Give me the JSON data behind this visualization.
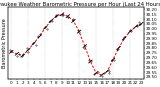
{
  "title": "Milwaukee Weather Barometric Pressure per Hour (Last 24 Hours)",
  "left_label": "Barometric Pressure",
  "hours": [
    0,
    1,
    2,
    3,
    4,
    5,
    6,
    7,
    8,
    9,
    10,
    11,
    12,
    13,
    14,
    15,
    16,
    17,
    18,
    19,
    20,
    21,
    22,
    23
  ],
  "pressure": [
    29.76,
    29.74,
    29.72,
    29.78,
    29.85,
    29.92,
    30.01,
    30.08,
    30.13,
    30.15,
    30.13,
    30.08,
    29.97,
    29.82,
    29.66,
    29.54,
    29.52,
    29.56,
    29.68,
    29.8,
    29.9,
    29.97,
    30.02,
    30.05
  ],
  "ylim": [
    29.48,
    30.22
  ],
  "yticks": [
    29.5,
    29.55,
    29.6,
    29.65,
    29.7,
    29.75,
    29.8,
    29.85,
    29.9,
    29.95,
    30.0,
    30.05,
    30.1,
    30.15,
    30.2
  ],
  "background_color": "#ffffff",
  "line_color": "#ff0000",
  "tick_color": "#000000",
  "grid_color": "#888888",
  "title_fontsize": 3.8,
  "tick_fontsize": 3.0,
  "label_fontsize": 3.5
}
